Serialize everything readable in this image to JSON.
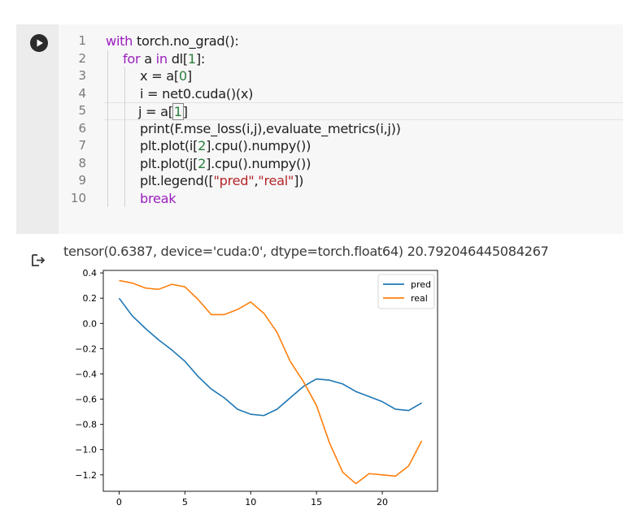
{
  "cell": {
    "run_button_label": "Run cell",
    "line_numbers": [
      "1",
      "2",
      "3",
      "4",
      "5",
      "6",
      "7",
      "8",
      "9",
      "10"
    ],
    "code_lines": [
      "with torch.no_grad():",
      "    for a in dl[1]:",
      "        x = a[0]",
      "        i = net0.cuda()(x)",
      "        j = a[1]",
      "        print(F.mse_loss(i,j),evaluate_metrics(i,j))",
      "        plt.plot(i[2].cpu().numpy())",
      "        plt.plot(j[2].cpu().numpy())",
      "        plt.legend([\"pred\",\"real\"])",
      "        break"
    ],
    "colors": {
      "keyword": "#9b1fbf",
      "number": "#2a7e3d",
      "string": "#b4262b"
    }
  },
  "output": {
    "icon": "output-redirect-icon",
    "text": "tensor(0.6387, device='cuda:0', dtype=torch.float64) 20.792046445084267"
  },
  "chart_data": {
    "type": "line",
    "title": "",
    "xlabel": "",
    "ylabel": "",
    "xlim": [
      -1.2,
      24.2
    ],
    "ylim": [
      -1.33,
      0.42
    ],
    "xticks": [
      0,
      5,
      10,
      15,
      20
    ],
    "xtick_labels": [
      "0",
      "5",
      "10",
      "15",
      "20"
    ],
    "yticks": [
      0.4,
      0.2,
      0.0,
      -0.2,
      -0.4,
      -0.6,
      -0.8,
      -1.0,
      -1.2
    ],
    "ytick_labels": [
      "0.4",
      "0.2",
      "0.0",
      "−0.2",
      "−0.4",
      "−0.6",
      "−0.8",
      "−1.0",
      "−1.2"
    ],
    "grid": false,
    "legend_position": "top-right",
    "x": [
      0,
      1,
      2,
      3,
      4,
      5,
      6,
      7,
      8,
      9,
      10,
      11,
      12,
      13,
      14,
      15,
      16,
      17,
      18,
      19,
      20,
      21,
      22,
      23
    ],
    "series": [
      {
        "name": "pred",
        "color": "#1f77b4",
        "values": [
          0.2,
          0.06,
          -0.04,
          -0.13,
          -0.21,
          -0.3,
          -0.42,
          -0.52,
          -0.59,
          -0.68,
          -0.72,
          -0.73,
          -0.68,
          -0.59,
          -0.5,
          -0.44,
          -0.45,
          -0.48,
          -0.54,
          -0.58,
          -0.62,
          -0.68,
          -0.69,
          -0.63
        ]
      },
      {
        "name": "real",
        "color": "#ff7f0e",
        "values": [
          0.34,
          0.32,
          0.28,
          0.27,
          0.31,
          0.29,
          0.19,
          0.07,
          0.07,
          0.11,
          0.17,
          0.08,
          -0.07,
          -0.3,
          -0.46,
          -0.65,
          -0.95,
          -1.18,
          -1.27,
          -1.19,
          -1.2,
          -1.21,
          -1.13,
          -0.93
        ]
      }
    ]
  }
}
